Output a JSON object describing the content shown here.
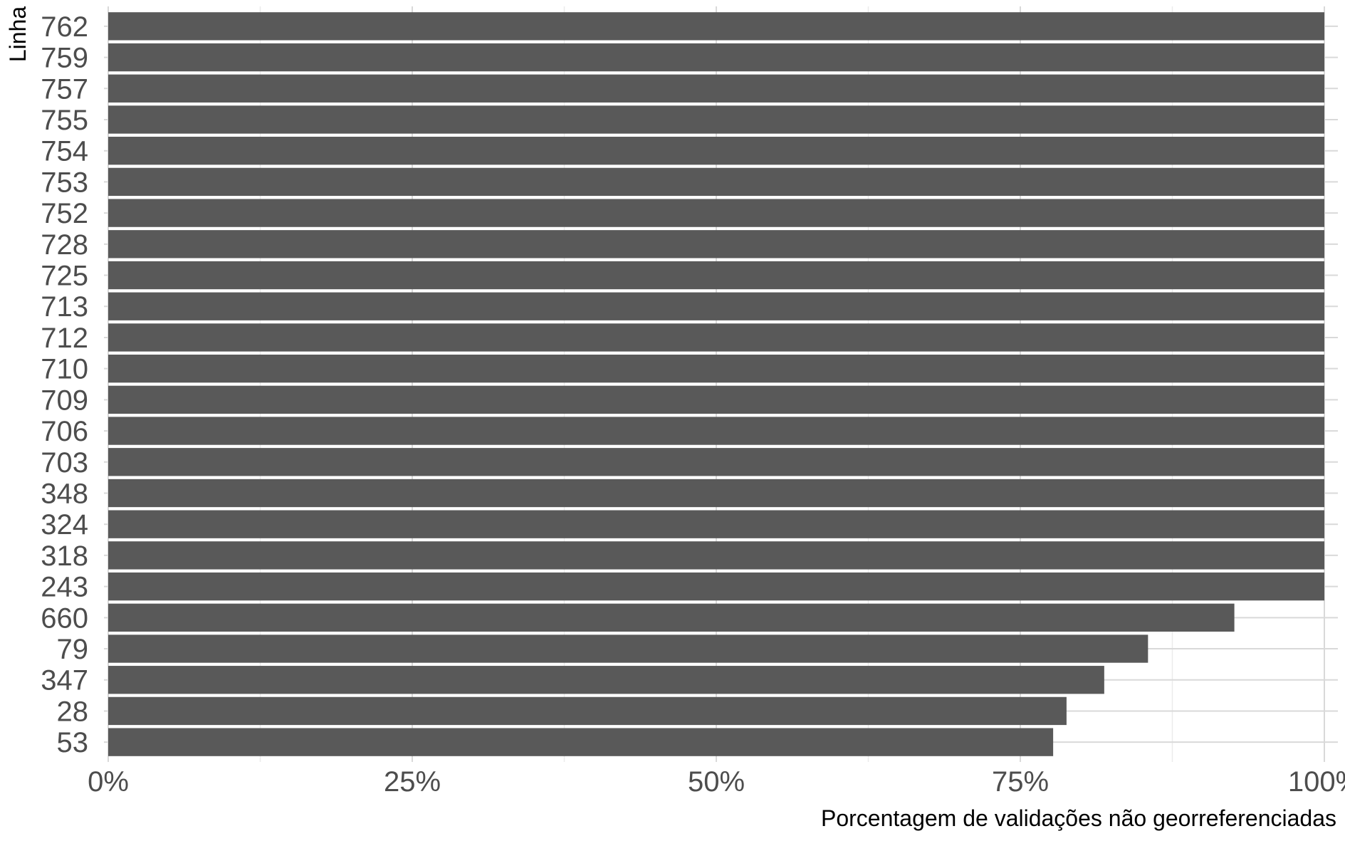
{
  "chart_data": {
    "type": "bar",
    "orientation": "horizontal",
    "title": "",
    "xlabel": "Porcentagem de validações não georreferenciadas",
    "ylabel": "Linha",
    "xlim": [
      0,
      100
    ],
    "x_ticks": [
      "0%",
      "25%",
      "50%",
      "75%",
      "100%"
    ],
    "grid": true,
    "bar_color": "#595959",
    "categories": [
      "762",
      "759",
      "757",
      "755",
      "754",
      "753",
      "752",
      "728",
      "725",
      "713",
      "712",
      "710",
      "709",
      "706",
      "703",
      "348",
      "324",
      "318",
      "243",
      "660",
      "79",
      "347",
      "28",
      "53"
    ],
    "values": [
      100,
      100,
      100,
      100,
      100,
      100,
      100,
      100,
      100,
      100,
      100,
      100,
      100,
      100,
      100,
      100,
      100,
      100,
      100,
      92.6,
      85.5,
      81.9,
      78.8,
      77.7
    ]
  }
}
